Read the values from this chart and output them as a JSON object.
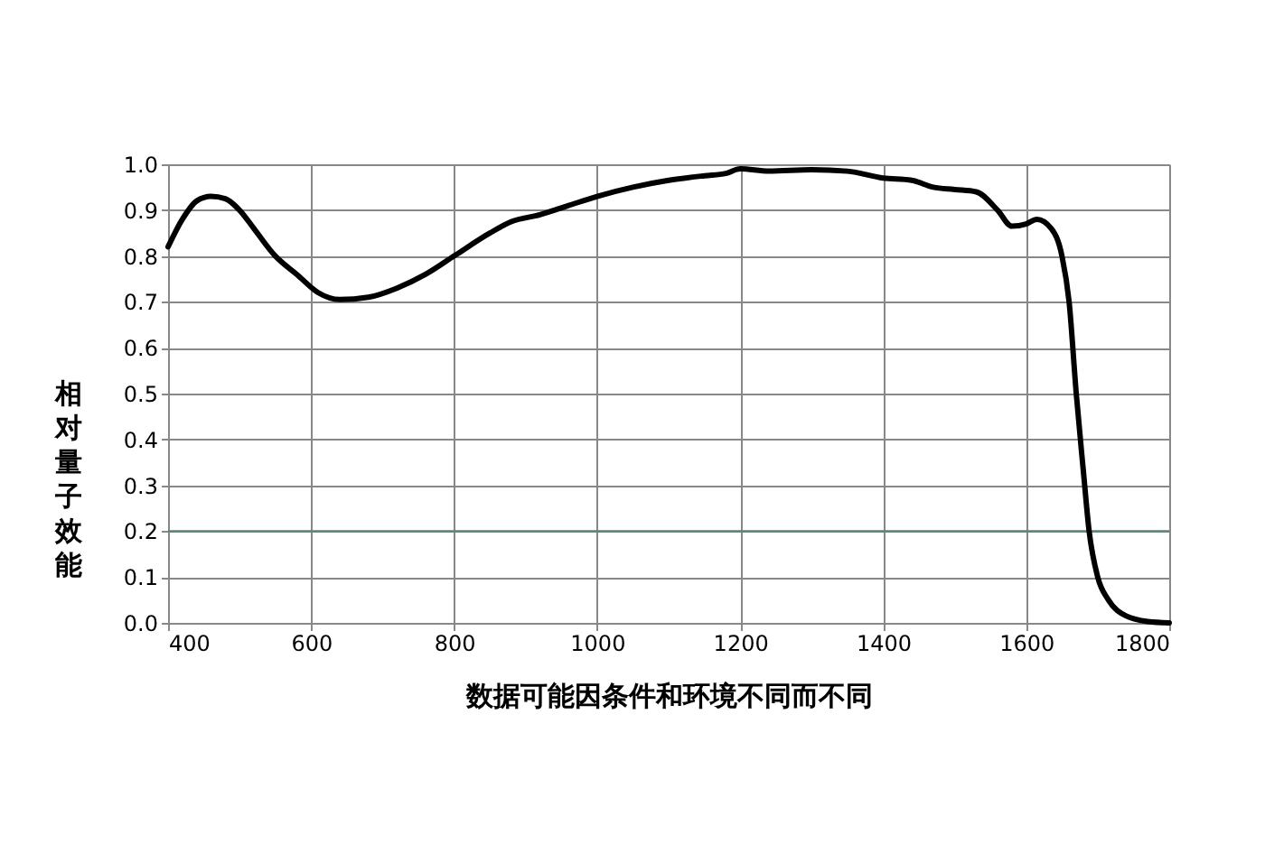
{
  "chart_data": {
    "type": "line",
    "xlabel": "数据可能因条件和环境不同而不同",
    "ylabel": "相对量子效能",
    "series": [
      {
        "color": "#000000",
        "x": [
          400,
          420,
          440,
          460,
          480,
          500,
          520,
          550,
          580,
          610,
          640,
          680,
          720,
          760,
          800,
          850,
          880,
          920,
          960,
          1000,
          1050,
          1100,
          1150,
          1180,
          1200,
          1240,
          1300,
          1350,
          1400,
          1440,
          1470,
          1500,
          1530,
          1560,
          1580,
          1600,
          1615,
          1635,
          1650,
          1660,
          1670,
          1680,
          1688,
          1700,
          1715,
          1740,
          1770,
          1800
        ],
        "values": [
          0.82,
          0.88,
          0.92,
          0.93,
          0.925,
          0.9,
          0.86,
          0.8,
          0.76,
          0.72,
          0.705,
          0.71,
          0.73,
          0.76,
          0.8,
          0.85,
          0.875,
          0.89,
          0.91,
          0.93,
          0.95,
          0.965,
          0.975,
          0.98,
          0.99,
          0.985,
          0.988,
          0.985,
          0.97,
          0.965,
          0.95,
          0.945,
          0.94,
          0.9,
          0.865,
          0.87,
          0.88,
          0.86,
          0.8,
          0.7,
          0.5,
          0.33,
          0.2,
          0.1,
          0.05,
          0.015,
          0.003,
          0.0
        ]
      }
    ],
    "xlim": [
      400,
      1800
    ],
    "xticks": [
      400,
      600,
      800,
      1000,
      1200,
      1400,
      1600,
      1800
    ],
    "ylim": [
      0,
      1.0
    ],
    "yticks": [
      {
        "value": 0,
        "label": "0.0"
      },
      0.1,
      0.2,
      0.3,
      0.4,
      0.5,
      0.6,
      0.7,
      0.8,
      0.9,
      {
        "value": 1.0,
        "label": "1.0"
      }
    ],
    "grid": true,
    "marker": "none",
    "line_style": "solid",
    "ref_lines": [
      {
        "axis": "y",
        "value": 0.2,
        "color": "#4f8a7c"
      }
    ]
  }
}
